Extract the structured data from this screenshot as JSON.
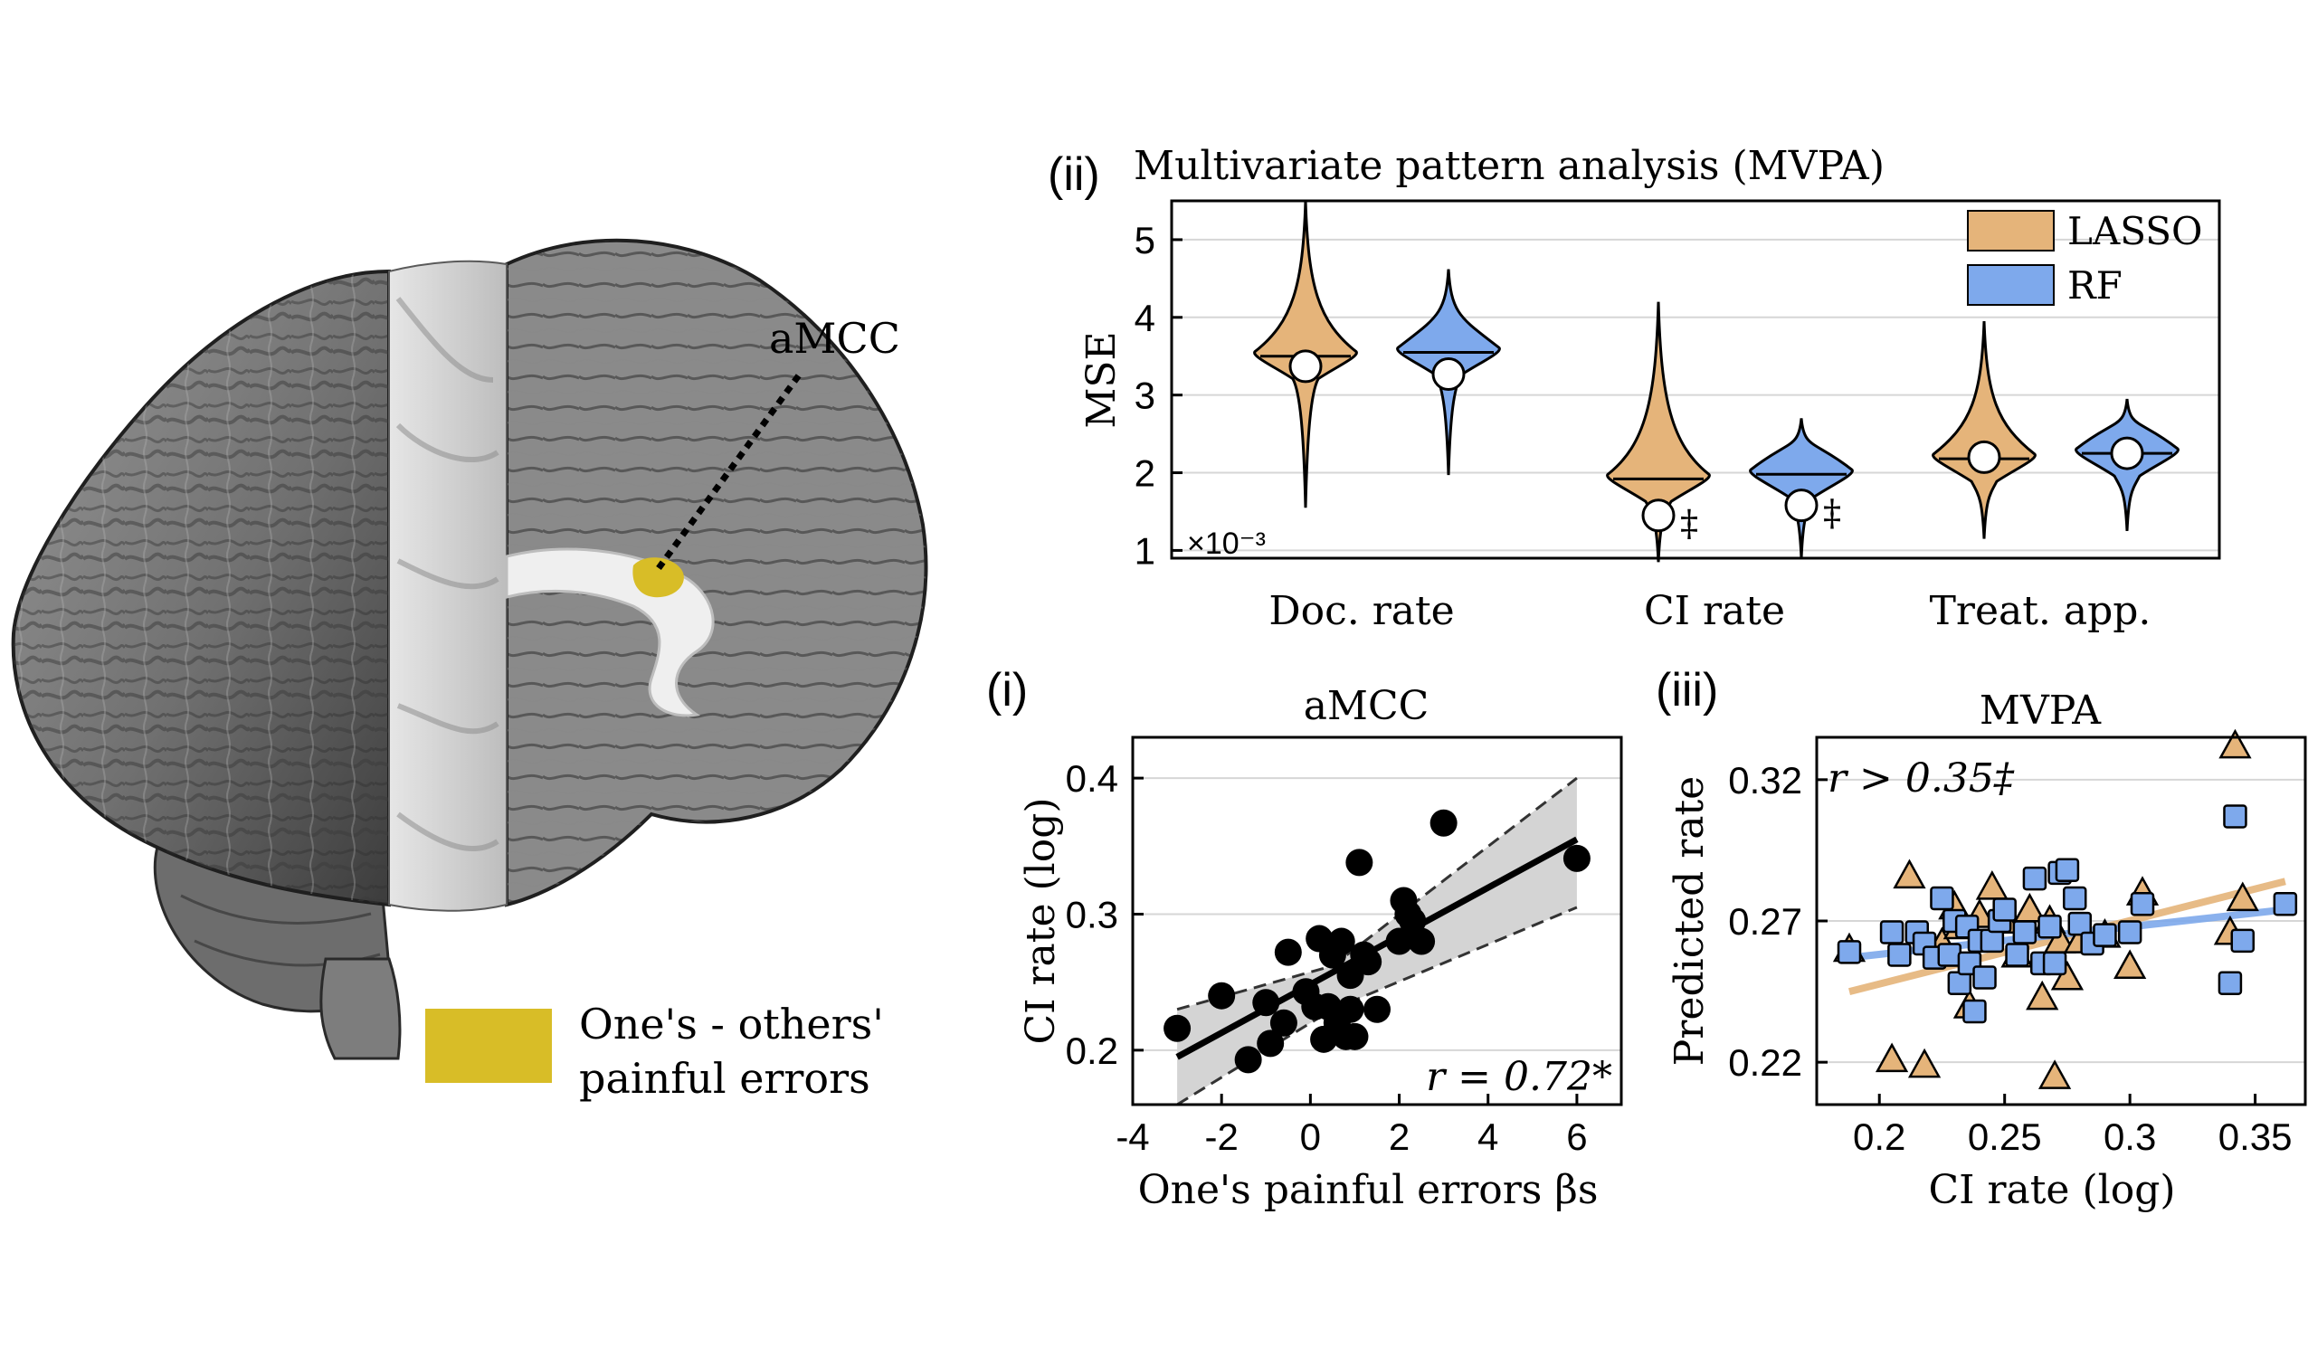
{
  "brain": {
    "roi_label": "aMCC",
    "legend_line1": "One's - others'",
    "legend_line2": "painful errors",
    "legend_color": "#d8bd27"
  },
  "colors": {
    "lasso": "#e5b47a",
    "rf": "#7ea9ec",
    "points": "#000000",
    "ci_band": "#d4d4d4"
  },
  "chart_data": [
    {
      "panel": "(ii)",
      "type": "violin",
      "title": "Multivariate pattern analysis (MVPA)",
      "ylabel": "MSE",
      "y_scale_note": "×10⁻³",
      "ylim": [
        0.9,
        5.5
      ],
      "yticks": [
        1,
        2,
        3,
        4,
        5
      ],
      "categories": [
        "Doc. rate",
        "CI  rate",
        "Treat. app."
      ],
      "legend": [
        "LASSO",
        "RF"
      ],
      "legend_position": "top-right",
      "series": [
        {
          "name": "LASSO",
          "median": [
            3.5,
            1.92,
            2.18
          ],
          "range": [
            [
              1.55,
              5.5
            ],
            [
              0.85,
              4.2
            ],
            [
              1.15,
              3.95
            ]
          ],
          "true_model_mse": [
            3.37,
            1.45,
            2.2
          ],
          "marker_symbol": [
            "",
            "‡",
            ""
          ]
        },
        {
          "name": "RF",
          "median": [
            3.55,
            1.98,
            2.25
          ],
          "range": [
            [
              1.97,
              4.62
            ],
            [
              0.9,
              2.7
            ],
            [
              1.25,
              2.95
            ]
          ],
          "true_model_mse": [
            3.27,
            1.58,
            2.25
          ],
          "marker_symbol": [
            "",
            "‡",
            ""
          ]
        }
      ]
    },
    {
      "panel": "(i)",
      "type": "scatter",
      "title": "aMCC",
      "xlabel": "One's painful errors βs",
      "ylabel": "CI rate (log)",
      "xlim": [
        -4.0,
        7.0
      ],
      "ylim": [
        0.16,
        0.43
      ],
      "xticks": [
        -4,
        -2,
        0,
        2,
        4,
        6
      ],
      "yticks": [
        0.2,
        0.3,
        0.4
      ],
      "annotation": "r = 0.72*",
      "x": [
        -3.0,
        -2.0,
        -1.4,
        -1.0,
        -0.9,
        -0.6,
        -0.5,
        -0.1,
        0.1,
        0.2,
        0.3,
        0.4,
        0.5,
        0.6,
        0.7,
        0.8,
        0.9,
        0.9,
        1.0,
        1.1,
        1.2,
        1.3,
        1.5,
        2.0,
        2.1,
        2.2,
        2.3,
        2.5,
        3.0,
        6.0
      ],
      "y": [
        0.216,
        0.24,
        0.193,
        0.235,
        0.205,
        0.22,
        0.272,
        0.243,
        0.232,
        0.282,
        0.208,
        0.232,
        0.27,
        0.22,
        0.28,
        0.21,
        0.255,
        0.23,
        0.21,
        0.338,
        0.27,
        0.265,
        0.23,
        0.28,
        0.31,
        0.3,
        0.295,
        0.28,
        0.367,
        0.341
      ],
      "fit": {
        "x": [
          -3.0,
          6.0
        ],
        "y": [
          0.195,
          0.355
        ]
      },
      "ci_band": {
        "x": [
          -3.0,
          0.5,
          6.0
        ],
        "lower": [
          0.16,
          0.23,
          0.305
        ],
        "upper": [
          0.23,
          0.262,
          0.4
        ]
      }
    },
    {
      "panel": "(iii)",
      "type": "scatter",
      "title": "MVPA",
      "xlabel": "CI rate (log)",
      "ylabel": "Predicted rate",
      "xlim": [
        0.175,
        0.37
      ],
      "ylim": [
        0.205,
        0.335
      ],
      "xticks": [
        0.2,
        0.25,
        0.3,
        0.35
      ],
      "yticks": [
        0.22,
        0.27,
        0.32
      ],
      "annotation": "r > 0.35‡",
      "series": [
        {
          "name": "LASSO",
          "marker": "triangle",
          "x": [
            0.188,
            0.205,
            0.212,
            0.218,
            0.225,
            0.23,
            0.232,
            0.236,
            0.24,
            0.245,
            0.25,
            0.255,
            0.26,
            0.265,
            0.268,
            0.27,
            0.272,
            0.275,
            0.28,
            0.29,
            0.3,
            0.305,
            0.34,
            0.342,
            0.345
          ],
          "y": [
            0.26,
            0.221,
            0.286,
            0.219,
            0.262,
            0.275,
            0.268,
            0.24,
            0.272,
            0.282,
            0.27,
            0.258,
            0.274,
            0.243,
            0.27,
            0.215,
            0.263,
            0.25,
            0.263,
            0.265,
            0.254,
            0.28,
            0.266,
            0.332,
            0.278
          ],
          "fit": {
            "x": [
              0.188,
              0.362
            ],
            "y": [
              0.245,
              0.284
            ]
          }
        },
        {
          "name": "RF",
          "marker": "square",
          "x": [
            0.188,
            0.205,
            0.208,
            0.215,
            0.218,
            0.222,
            0.225,
            0.228,
            0.23,
            0.232,
            0.235,
            0.236,
            0.238,
            0.24,
            0.242,
            0.245,
            0.248,
            0.25,
            0.255,
            0.258,
            0.262,
            0.265,
            0.268,
            0.27,
            0.272,
            0.275,
            0.278,
            0.28,
            0.285,
            0.29,
            0.3,
            0.305,
            0.34,
            0.342,
            0.345,
            0.362
          ],
          "y": [
            0.259,
            0.266,
            0.258,
            0.266,
            0.262,
            0.257,
            0.278,
            0.258,
            0.27,
            0.248,
            0.268,
            0.255,
            0.238,
            0.263,
            0.25,
            0.263,
            0.27,
            0.274,
            0.258,
            0.266,
            0.285,
            0.255,
            0.268,
            0.255,
            0.287,
            0.288,
            0.278,
            0.269,
            0.262,
            0.265,
            0.266,
            0.276,
            0.248,
            0.307,
            0.263,
            0.276
          ],
          "fit": {
            "x": [
              0.188,
              0.362
            ],
            "y": [
              0.257,
              0.274
            ]
          }
        }
      ]
    }
  ]
}
